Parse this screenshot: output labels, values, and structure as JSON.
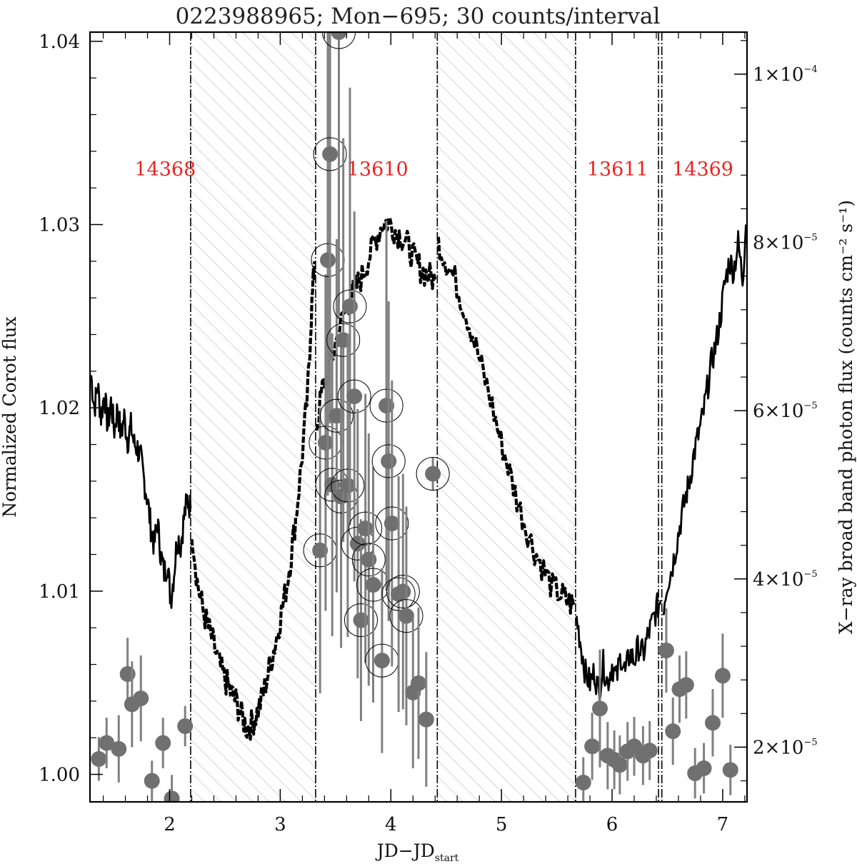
{
  "chart_data": {
    "type": "scatter",
    "title": "0223988965; Mon−695; 30 counts/interval",
    "xlabel": "JD−JD",
    "xlabel_sub": "start",
    "ylabel_left": "Normalized Corot flux",
    "ylabel_right": "X−ray broad band photon flux (counts cm⁻² s⁻¹)",
    "xlim": [
      1.28,
      7.22
    ],
    "ylim_left": [
      0.9985,
      1.0405
    ],
    "ylim_right": [
      1.35e-05,
      0.000105
    ],
    "grid": false,
    "x_ticks": [
      {
        "v": 2,
        "label": "2"
      },
      {
        "v": 3,
        "label": "3"
      },
      {
        "v": 4,
        "label": "4"
      },
      {
        "v": 5,
        "label": "5"
      },
      {
        "v": 6,
        "label": "6"
      },
      {
        "v": 7,
        "label": "7"
      }
    ],
    "left_ticks": [
      {
        "v": 1.0,
        "label": "1.00"
      },
      {
        "v": 1.01,
        "label": "1.01"
      },
      {
        "v": 1.02,
        "label": "1.02"
      },
      {
        "v": 1.03,
        "label": "1.03"
      },
      {
        "v": 1.04,
        "label": "1.04"
      }
    ],
    "right_ticks": [
      {
        "v": 2e-05,
        "mant": "2",
        "exp": "−5"
      },
      {
        "v": 4e-05,
        "mant": "4",
        "exp": "−5"
      },
      {
        "v": 6e-05,
        "mant": "6",
        "exp": "−5"
      },
      {
        "v": 8e-05,
        "mant": "8",
        "exp": "−5"
      },
      {
        "v": 0.0001,
        "mant": "1",
        "exp": "−4"
      }
    ],
    "observations": [
      {
        "label": "14368",
        "x": 1.96
      },
      {
        "label": "13610",
        "x": 3.88
      },
      {
        "label": "13611",
        "x": 6.05
      },
      {
        "label": "14369",
        "x": 6.82
      }
    ],
    "gap_regions": [
      [
        2.19,
        3.32
      ],
      [
        4.42,
        5.67
      ]
    ],
    "boundary_lines": [
      2.19,
      3.32,
      4.42,
      5.67,
      6.42,
      6.45
    ],
    "corot_segments": [
      {
        "style": "solid",
        "points": [
          [
            1.29,
            1.0218
          ],
          [
            1.32,
            1.02
          ],
          [
            1.35,
            1.0212
          ],
          [
            1.38,
            1.0195
          ],
          [
            1.41,
            1.0208
          ],
          [
            1.44,
            1.019
          ],
          [
            1.47,
            1.0203
          ],
          [
            1.5,
            1.0188
          ],
          [
            1.53,
            1.02
          ],
          [
            1.56,
            1.0185
          ],
          [
            1.59,
            1.0195
          ],
          [
            1.62,
            1.0182
          ],
          [
            1.65,
            1.019
          ],
          [
            1.68,
            1.018
          ],
          [
            1.71,
            1.0178
          ],
          [
            1.74,
            1.0172
          ],
          [
            1.77,
            1.016
          ],
          [
            1.8,
            1.015
          ],
          [
            1.83,
            1.0135
          ],
          [
            1.86,
            1.0125
          ],
          [
            1.89,
            1.0138
          ],
          [
            1.92,
            1.012
          ],
          [
            1.95,
            1.011
          ],
          [
            1.98,
            1.0115
          ],
          [
            2.01,
            1.0095
          ],
          [
            2.04,
            1.011
          ],
          [
            2.07,
            1.013
          ],
          [
            2.1,
            1.0125
          ],
          [
            2.13,
            1.014
          ],
          [
            2.16,
            1.015
          ],
          [
            2.19,
            1.0145
          ]
        ]
      },
      {
        "style": "dashed",
        "points": [
          [
            2.2,
            1.0135
          ],
          [
            2.25,
            1.0105
          ],
          [
            2.3,
            1.009
          ],
          [
            2.35,
            1.008
          ],
          [
            2.4,
            1.007
          ],
          [
            2.45,
            1.006
          ],
          [
            2.5,
            1.0052
          ],
          [
            2.55,
            1.0045
          ],
          [
            2.6,
            1.004
          ],
          [
            2.65,
            1.0032
          ],
          [
            2.7,
            1.0025
          ],
          [
            2.75,
            1.0028
          ],
          [
            2.8,
            1.0035
          ],
          [
            2.85,
            1.0045
          ],
          [
            2.9,
            1.0058
          ],
          [
            2.95,
            1.007
          ],
          [
            3.0,
            1.0085
          ],
          [
            3.05,
            1.01
          ],
          [
            3.1,
            1.012
          ],
          [
            3.15,
            1.0145
          ],
          [
            3.2,
            1.0175
          ],
          [
            3.25,
            1.021
          ],
          [
            3.28,
            1.025
          ],
          [
            3.31,
            1.028
          ]
        ]
      },
      {
        "style": "dashed",
        "points": [
          [
            3.33,
            1.019
          ],
          [
            3.38,
            1.021
          ],
          [
            3.44,
            1.022
          ],
          [
            3.5,
            1.0235
          ],
          [
            3.56,
            1.0248
          ],
          [
            3.62,
            1.0258
          ],
          [
            3.68,
            1.0265
          ],
          [
            3.74,
            1.0272
          ],
          [
            3.8,
            1.0282
          ],
          [
            3.86,
            1.0292
          ],
          [
            3.92,
            1.03
          ],
          [
            3.98,
            1.0302
          ],
          [
            4.04,
            1.0297
          ],
          [
            4.1,
            1.0293
          ],
          [
            4.16,
            1.0288
          ],
          [
            4.22,
            1.028
          ],
          [
            4.28,
            1.0275
          ],
          [
            4.34,
            1.0272
          ],
          [
            4.4,
            1.027
          ]
        ]
      },
      {
        "style": "dashed",
        "points": [
          [
            4.43,
            1.029
          ],
          [
            4.5,
            1.028
          ],
          [
            4.58,
            1.027
          ],
          [
            4.66,
            1.0255
          ],
          [
            4.74,
            1.024
          ],
          [
            4.82,
            1.0222
          ],
          [
            4.9,
            1.0205
          ],
          [
            4.98,
            1.0185
          ],
          [
            5.06,
            1.0168
          ],
          [
            5.14,
            1.015
          ],
          [
            5.22,
            1.0135
          ],
          [
            5.3,
            1.0122
          ],
          [
            5.38,
            1.0112
          ],
          [
            5.46,
            1.0102
          ],
          [
            5.54,
            1.0098
          ],
          [
            5.6,
            1.0094
          ],
          [
            5.66,
            1.0092
          ]
        ]
      },
      {
        "style": "solid",
        "points": [
          [
            5.68,
            1.0085
          ],
          [
            5.72,
            1.007
          ],
          [
            5.76,
            1.0055
          ],
          [
            5.8,
            1.005
          ],
          [
            5.84,
            1.0056
          ],
          [
            5.88,
            1.0045
          ],
          [
            5.92,
            1.006
          ],
          [
            5.96,
            1.005
          ],
          [
            6.0,
            1.006
          ],
          [
            6.04,
            1.0052
          ],
          [
            6.08,
            1.0065
          ],
          [
            6.12,
            1.0055
          ],
          [
            6.16,
            1.0066
          ],
          [
            6.2,
            1.0062
          ],
          [
            6.24,
            1.007
          ],
          [
            6.28,
            1.0065
          ],
          [
            6.32,
            1.0075
          ],
          [
            6.36,
            1.0082
          ],
          [
            6.4,
            1.009
          ],
          [
            6.44,
            1.0095
          ]
        ]
      },
      {
        "style": "solid",
        "points": [
          [
            6.46,
            1.009
          ],
          [
            6.5,
            1.0105
          ],
          [
            6.54,
            1.0112
          ],
          [
            6.58,
            1.0125
          ],
          [
            6.62,
            1.0138
          ],
          [
            6.66,
            1.015
          ],
          [
            6.7,
            1.016
          ],
          [
            6.74,
            1.0175
          ],
          [
            6.78,
            1.0185
          ],
          [
            6.82,
            1.0195
          ],
          [
            6.86,
            1.021
          ],
          [
            6.9,
            1.0225
          ],
          [
            6.94,
            1.0235
          ],
          [
            6.98,
            1.025
          ],
          [
            7.02,
            1.0268
          ],
          [
            7.06,
            1.028
          ],
          [
            7.1,
            1.0275
          ],
          [
            7.14,
            1.029
          ],
          [
            7.18,
            1.027
          ],
          [
            7.21,
            1.03
          ]
        ]
      }
    ],
    "xray_points": [
      {
        "x": 1.36,
        "y": 1.86e-05,
        "err": 2.6e-06,
        "c": false
      },
      {
        "x": 1.43,
        "y": 2.05e-05,
        "err": 3e-06,
        "c": false
      },
      {
        "x": 1.54,
        "y": 1.98e-05,
        "err": 4e-06,
        "c": false
      },
      {
        "x": 1.62,
        "y": 2.87e-05,
        "err": 4.3e-06,
        "c": false
      },
      {
        "x": 1.66,
        "y": 2.51e-05,
        "err": 5.1e-06,
        "c": false
      },
      {
        "x": 1.74,
        "y": 2.58e-05,
        "err": 5.1e-06,
        "c": false
      },
      {
        "x": 1.84,
        "y": 1.6e-05,
        "err": 2.4e-06,
        "c": false
      },
      {
        "x": 1.94,
        "y": 2.05e-05,
        "err": 3e-06,
        "c": false
      },
      {
        "x": 2.02,
        "y": 1.39e-05,
        "err": 2.8e-06,
        "c": false
      },
      {
        "x": 2.14,
        "y": 2.25e-05,
        "err": 2.4e-06,
        "c": false
      },
      {
        "x": 3.36,
        "y": 4.34e-05,
        "err": 1.7e-05,
        "c": true
      },
      {
        "x": 3.41,
        "y": 5.62e-05,
        "err": 2e-05,
        "c": true
      },
      {
        "x": 3.43,
        "y": 7.79e-05,
        "err": 2.8e-05,
        "c": true
      },
      {
        "x": 3.45,
        "y": 9.05e-05,
        "err": 3.2e-05,
        "c": true
      },
      {
        "x": 3.47,
        "y": 5.12e-05,
        "err": 1.8e-05,
        "c": true
      },
      {
        "x": 3.51,
        "y": 5.94e-05,
        "err": 2.1e-05,
        "c": true
      },
      {
        "x": 3.53,
        "y": 0.000105,
        "err": 3.4e-05,
        "c": true
      },
      {
        "x": 3.55,
        "y": 4.98e-05,
        "err": 1.8e-05,
        "c": true
      },
      {
        "x": 3.57,
        "y": 6.84e-05,
        "err": 2.4e-05,
        "c": true
      },
      {
        "x": 3.61,
        "y": 5.11e-05,
        "err": 1.8e-05,
        "c": true
      },
      {
        "x": 3.63,
        "y": 7.24e-05,
        "err": 2.6e-05,
        "c": true
      },
      {
        "x": 3.67,
        "y": 6.17e-05,
        "err": 2.2e-05,
        "c": true
      },
      {
        "x": 3.7,
        "y": 4.42e-05,
        "err": 1.6e-05,
        "c": true
      },
      {
        "x": 3.73,
        "y": 3.51e-05,
        "err": 1.2e-05,
        "c": true
      },
      {
        "x": 3.77,
        "y": 4.6e-05,
        "err": 1.6e-05,
        "c": true
      },
      {
        "x": 3.8,
        "y": 4.23e-05,
        "err": 1.5e-05,
        "c": true
      },
      {
        "x": 3.84,
        "y": 3.93e-05,
        "err": 1.4e-05,
        "c": true
      },
      {
        "x": 3.92,
        "y": 3.03e-05,
        "err": 1.1e-05,
        "c": true
      },
      {
        "x": 3.96,
        "y": 6.06e-05,
        "err": 2.2e-05,
        "c": true
      },
      {
        "x": 3.98,
        "y": 5.4e-05,
        "err": 1.9e-05,
        "c": true
      },
      {
        "x": 4.01,
        "y": 4.66e-05,
        "err": 1.7e-05,
        "c": true
      },
      {
        "x": 4.07,
        "y": 3.82e-05,
        "err": 1.4e-05,
        "c": true
      },
      {
        "x": 4.11,
        "y": 3.85e-05,
        "err": 1.4e-05,
        "c": true
      },
      {
        "x": 4.14,
        "y": 3.56e-05,
        "err": 1.3e-05,
        "c": true
      },
      {
        "x": 4.2,
        "y": 2.65e-05,
        "err": 9e-06,
        "c": false
      },
      {
        "x": 4.25,
        "y": 2.76e-05,
        "err": 9e-06,
        "c": false
      },
      {
        "x": 4.32,
        "y": 2.33e-05,
        "err": 8e-06,
        "c": false
      },
      {
        "x": 4.38,
        "y": 5.25e-05,
        "err": 2e-06,
        "c": true
      },
      {
        "x": 5.74,
        "y": 1.58e-05,
        "err": 3e-06,
        "c": false
      },
      {
        "x": 5.82,
        "y": 2.01e-05,
        "err": 4e-06,
        "c": false
      },
      {
        "x": 5.89,
        "y": 2.46e-05,
        "err": 7e-06,
        "c": false
      },
      {
        "x": 5.96,
        "y": 1.9e-05,
        "err": 4e-06,
        "c": false
      },
      {
        "x": 6.02,
        "y": 1.85e-05,
        "err": 3.5e-06,
        "c": false
      },
      {
        "x": 6.07,
        "y": 1.79e-05,
        "err": 3.5e-06,
        "c": false
      },
      {
        "x": 6.14,
        "y": 1.95e-05,
        "err": 3.5e-06,
        "c": false
      },
      {
        "x": 6.2,
        "y": 2.01e-05,
        "err": 3.5e-06,
        "c": false
      },
      {
        "x": 6.28,
        "y": 1.9e-05,
        "err": 3.5e-06,
        "c": false
      },
      {
        "x": 6.34,
        "y": 1.96e-05,
        "err": 3.5e-06,
        "c": false
      },
      {
        "x": 6.49,
        "y": 3.15e-05,
        "err": 5e-06,
        "c": false
      },
      {
        "x": 6.55,
        "y": 2.19e-05,
        "err": 4e-06,
        "c": false
      },
      {
        "x": 6.61,
        "y": 2.69e-05,
        "err": 4e-06,
        "c": false
      },
      {
        "x": 6.67,
        "y": 2.74e-05,
        "err": 4e-06,
        "c": false
      },
      {
        "x": 6.75,
        "y": 1.69e-05,
        "err": 3e-06,
        "c": false
      },
      {
        "x": 6.83,
        "y": 1.75e-05,
        "err": 3e-06,
        "c": false
      },
      {
        "x": 6.91,
        "y": 2.29e-05,
        "err": 4e-06,
        "c": false
      },
      {
        "x": 7.0,
        "y": 2.85e-05,
        "err": 5e-06,
        "c": false
      },
      {
        "x": 7.07,
        "y": 1.73e-05,
        "err": 3e-06,
        "c": false
      }
    ]
  }
}
